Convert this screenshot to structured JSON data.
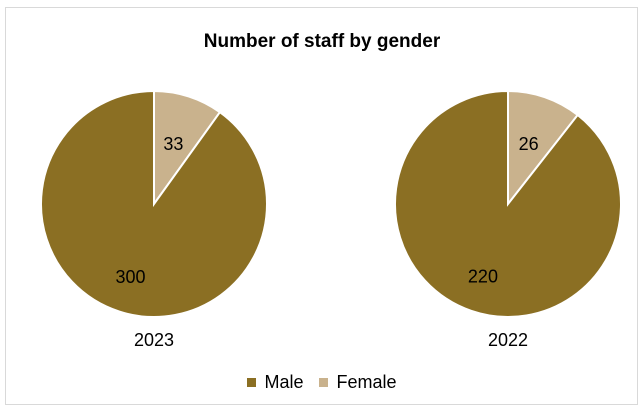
{
  "chart_data": {
    "type": "pie",
    "title": "Number of staff by gender",
    "legend_position": "bottom",
    "series_labels": [
      "Male",
      "Female"
    ],
    "colors": {
      "Male": "#8b6f23",
      "Female": "#c9b28d"
    },
    "pies": [
      {
        "label": "2023",
        "slices": [
          {
            "name": "Male",
            "value": 300
          },
          {
            "name": "Female",
            "value": 33
          }
        ]
      },
      {
        "label": "2022",
        "slices": [
          {
            "name": "Male",
            "value": 220
          },
          {
            "name": "Female",
            "value": 26
          }
        ]
      }
    ]
  }
}
